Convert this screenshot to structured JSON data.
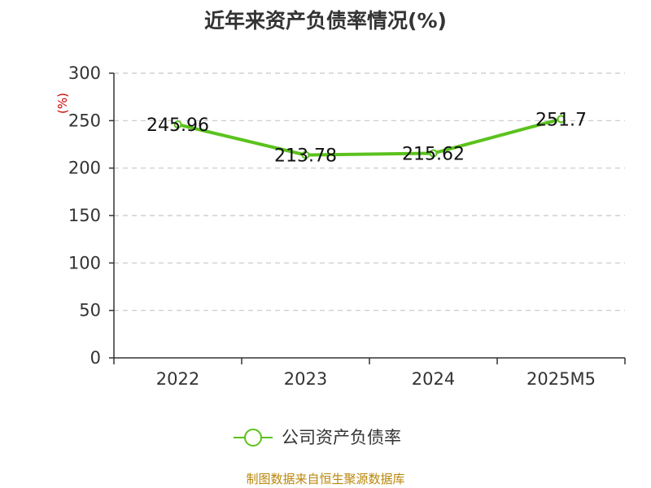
{
  "chart_data": {
    "type": "line",
    "title": "近年来资产负债率情况(%)",
    "ylabel": "(%)",
    "categories": [
      "2022",
      "2023",
      "2024",
      "2025M5"
    ],
    "series": [
      {
        "name": "公司资产负债率",
        "values": [
          245.96,
          213.78,
          215.62,
          251.7
        ],
        "color": "#5bc21d"
      }
    ],
    "data_labels": [
      "245.96",
      "213.78",
      "215.62",
      "251.7"
    ],
    "ylim": [
      0,
      300
    ],
    "yticks": [
      0,
      50,
      100,
      150,
      200,
      250,
      300
    ],
    "grid": true,
    "legend": "bottom-center"
  },
  "source": "制图数据来自恒生聚源数据库"
}
